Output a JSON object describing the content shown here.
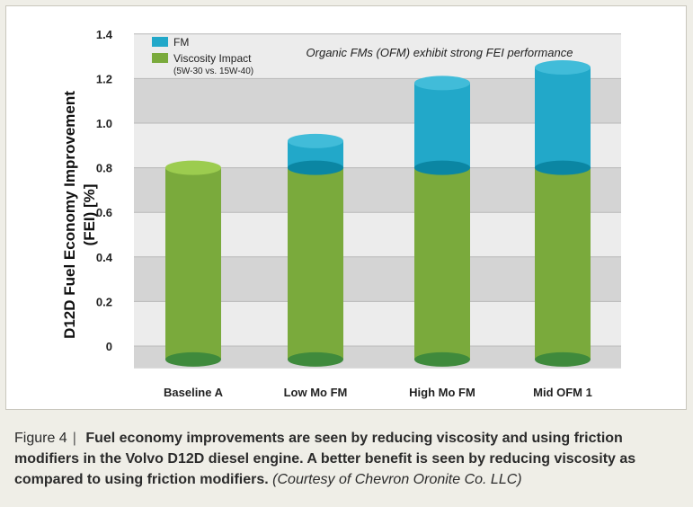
{
  "chart_data": {
    "type": "bar",
    "stacked": true,
    "categories": [
      "Baseline A",
      "Low Mo FM",
      "High Mo FM",
      "Mid OFM 1"
    ],
    "series": [
      {
        "name": "Viscosity Impact",
        "name_sub": "(5W-30 vs. 15W-40)",
        "color": "#7aaa3c",
        "values": [
          0.8,
          0.8,
          0.8,
          0.8
        ]
      },
      {
        "name": "FM",
        "color": "#22a8c9",
        "values": [
          0.0,
          0.12,
          0.38,
          0.45
        ]
      }
    ],
    "ylabel": "D12D Fuel Economy Improvement (FEI) [%]",
    "ylabel_line1": "D12D Fuel Economy Improvement",
    "ylabel_line2": "(FEI) [%]",
    "ylim": [
      -0.1,
      1.4
    ],
    "yticks": [
      "0",
      "0.2",
      "0.4",
      "0.6",
      "0.8",
      "1.0",
      "1.2",
      "1.4"
    ],
    "ytick_values": [
      0,
      0.2,
      0.4,
      0.6,
      0.8,
      1.0,
      1.2,
      1.4
    ],
    "annotation": "Organic FMs (OFM) exhibit strong FEI performance",
    "legend_position": "top-left",
    "grid": "alternating horizontal bands"
  },
  "caption": {
    "figure_label": "Figure 4",
    "separator": "|",
    "text": "Fuel economy improvements are seen by reducing viscosity and using friction modifiers in the Volvo D12D diesel engine. A better benefit is seen by reducing viscosity as compared to using friction modifiers.",
    "credit": "(Courtesy of Chevron Oronite Co. LLC)"
  }
}
